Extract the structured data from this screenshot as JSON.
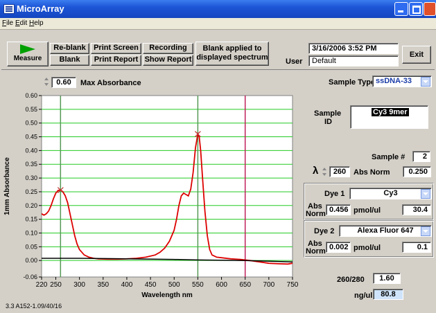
{
  "window": {
    "title": "MicroArray"
  },
  "menu": [
    {
      "label": "File",
      "key": "F",
      "rest": "ile"
    },
    {
      "label": "Edit",
      "key": "E",
      "rest": "dit"
    },
    {
      "label": "Help",
      "key": "H",
      "rest": "elp"
    }
  ],
  "toolbar": {
    "measure_label": "Measure",
    "reblank_label": "Re-blank",
    "blank_label": "Blank",
    "print_screen_label": "Print Screen",
    "print_report_label": "Print Report",
    "recording_label": "Recording",
    "show_report_label": "Show Report",
    "status_line1": "Blank applied to",
    "status_line2": "displayed spectrum",
    "datetime": "3/16/2006  3:52 PM",
    "user_label": "User",
    "user_value": "Default",
    "exit_label": "Exit"
  },
  "chart_controls": {
    "max_abs_value": "0.60",
    "max_abs_label": "Max Absorbance",
    "version": "3.3 A152-1.09/40/16"
  },
  "sample": {
    "type_label": "Sample Type",
    "type_value": "ssDNA-33",
    "id_label_1": "Sample",
    "id_label_2": "ID",
    "id_value": "Cy3 9mer",
    "num_label": "Sample #",
    "num_value": "2",
    "lambda_symbol": "λ",
    "lambda_value": "260",
    "abs_norm_label": "Abs Norm",
    "abs_norm_value": "0.250"
  },
  "dye1": {
    "label": "Dye 1",
    "value": "Cy3",
    "abs_label_1": "Abs",
    "abs_label_2": "Norm",
    "abs_value": "0.456",
    "conc_label": "pmol/ul",
    "conc_value": "30.4"
  },
  "dye2": {
    "label": "Dye 2",
    "value": "Alexa Fluor 647",
    "abs_label_1": "Abs",
    "abs_label_2": "Norm",
    "abs_value": "0.002",
    "conc_label": "pmol/ul",
    "conc_value": "0.1"
  },
  "results": {
    "ratio_label": "260/280",
    "ratio_value": "1.60",
    "ngul_label": "ng/ul",
    "ngul_value": "80.8"
  },
  "colors": {
    "title_blue": "#1c55d6",
    "plot_bg": "#ffffff",
    "grid": "#22cc22",
    "spectrum": "#dd0000",
    "baseline": "#000000",
    "cursor_green": "#559955",
    "cursor_magenta": "#c0205a",
    "measure_green": "#00a000"
  },
  "chart_data": {
    "type": "line",
    "xlabel": "Wavelength nm",
    "ylabel": "1mm Absorbance",
    "xlim": [
      220,
      750
    ],
    "ylim": [
      -0.06,
      0.6
    ],
    "xticks": [
      "220",
      "250",
      "300",
      "350",
      "400",
      "450",
      "500",
      "550",
      "600",
      "650",
      "700",
      "750"
    ],
    "yticks": [
      "0.60",
      "0.55",
      "0.50",
      "0.45",
      "0.40",
      "0.35",
      "0.30",
      "0.25",
      "0.20",
      "0.15",
      "0.10",
      "0.05",
      "0.00",
      "-0.06"
    ],
    "grid": true,
    "vlines": [
      {
        "x": 260,
        "color": "green"
      },
      {
        "x": 550,
        "color": "green"
      },
      {
        "x": 650,
        "color": "magenta"
      }
    ],
    "peak_markers": [
      {
        "x": 260,
        "y": 0.256
      },
      {
        "x": 550,
        "y": 0.46
      }
    ],
    "series": [
      {
        "color": "red",
        "x": [
          220,
          225,
          230,
          235,
          240,
          245,
          250,
          255,
          260,
          265,
          270,
          275,
          280,
          285,
          290,
          295,
          300,
          310,
          320,
          330,
          340,
          360,
          380,
          400,
          420,
          440,
          460,
          470,
          480,
          490,
          500,
          505,
          510,
          515,
          520,
          525,
          530,
          535,
          540,
          545,
          550,
          553,
          556,
          560,
          565,
          570,
          575,
          580,
          590,
          600,
          620,
          640,
          660,
          680,
          700,
          720,
          740,
          750
        ],
        "y": [
          0.17,
          0.165,
          0.17,
          0.18,
          0.2,
          0.225,
          0.245,
          0.255,
          0.256,
          0.25,
          0.235,
          0.21,
          0.17,
          0.13,
          0.09,
          0.06,
          0.04,
          0.02,
          0.012,
          0.008,
          0.006,
          0.005,
          0.005,
          0.006,
          0.008,
          0.012,
          0.02,
          0.03,
          0.045,
          0.07,
          0.11,
          0.15,
          0.2,
          0.235,
          0.245,
          0.24,
          0.235,
          0.26,
          0.32,
          0.41,
          0.46,
          0.45,
          0.4,
          0.3,
          0.18,
          0.09,
          0.04,
          0.02,
          0.012,
          0.01,
          0.006,
          0.004,
          0.0,
          -0.005,
          -0.01,
          -0.012,
          -0.013,
          -0.01
        ]
      },
      {
        "color": "black",
        "x": [
          220,
          300,
          400,
          500,
          550,
          650,
          750
        ],
        "y": [
          0.008,
          0.008,
          0.006,
          0.004,
          0.002,
          0.0,
          -0.005
        ]
      }
    ]
  }
}
